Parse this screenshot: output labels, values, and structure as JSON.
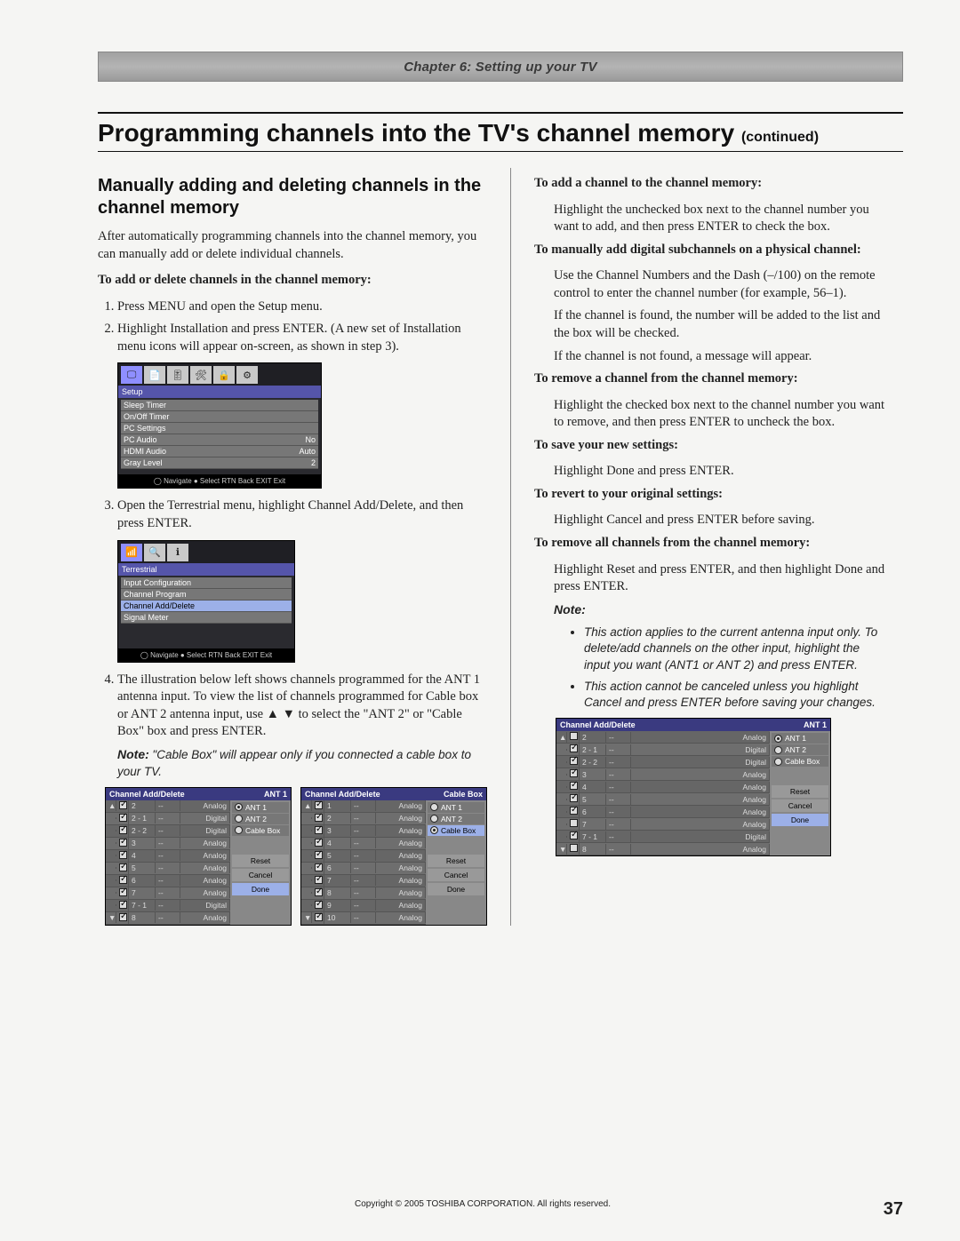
{
  "chapter_bar": "Chapter 6: Setting up your TV",
  "main_title": "Programming channels into the TV's channel memory",
  "main_title_cont": "(continued)",
  "left": {
    "sub_title": "Manually adding and deleting channels in the channel memory",
    "intro": "After automatically programming channels into the channel memory, you can manually add or delete individual channels.",
    "h_add_delete": "To add or delete channels in the channel memory:",
    "step1": "Press MENU and open the Setup menu.",
    "step2": "Highlight Installation and press ENTER. (A new set of Installation menu icons will appear on-screen, as shown in step 3).",
    "step3": "Open the Terrestrial menu, highlight Channel Add/Delete, and then press ENTER.",
    "step4": "The illustration below left shows channels programmed for the ANT 1 antenna input. To view the list of channels programmed for Cable box or ANT 2 antenna input, use ▲ ▼ to select the \"ANT 2\" or \"Cable Box\" box and press ENTER.",
    "note4_label": "Note:",
    "note4_text": "\"Cable Box\" will appear only if you connected a cable box to your TV.",
    "osd_setup": {
      "section": "Setup",
      "tabs": [
        "🖵",
        "📄",
        "🎚",
        "🛠",
        "🔒",
        "⚙"
      ],
      "rows": [
        {
          "label": "Sleep Timer",
          "value": ""
        },
        {
          "label": "On/Off Timer",
          "value": ""
        },
        {
          "label": "PC Settings",
          "value": ""
        },
        {
          "label": "PC Audio",
          "value": "No"
        },
        {
          "label": "HDMI Audio",
          "value": "Auto"
        },
        {
          "label": "Gray Level",
          "value": "2"
        }
      ],
      "nav": "◯ Navigate   ● Select   RTN Back   EXIT Exit"
    },
    "osd_terr": {
      "section": "Terrestrial",
      "tabs": [
        "📶",
        "🔍",
        "ℹ"
      ],
      "rows": [
        {
          "label": "Input Configuration",
          "value": ""
        },
        {
          "label": "Channel Program",
          "value": ""
        },
        {
          "label": "Channel Add/Delete",
          "value": "",
          "hl": true
        },
        {
          "label": "Signal Meter",
          "value": ""
        }
      ],
      "nav": "◯ Navigate   ● Select   RTN Back   EXIT Exit"
    },
    "cad_ant1": {
      "title": "Channel Add/Delete",
      "badge": "ANT 1",
      "rows": [
        {
          "arrow": "▲",
          "chk": true,
          "num": "2",
          "lbl": "--",
          "type": "Analog"
        },
        {
          "arrow": "",
          "chk": true,
          "num": "2 - 1",
          "lbl": "--",
          "type": "Digital"
        },
        {
          "arrow": "",
          "chk": true,
          "num": "2 - 2",
          "lbl": "--",
          "type": "Digital"
        },
        {
          "arrow": "",
          "chk": true,
          "num": "3",
          "lbl": "--",
          "type": "Analog"
        },
        {
          "arrow": "",
          "chk": true,
          "num": "4",
          "lbl": "--",
          "type": "Analog"
        },
        {
          "arrow": "",
          "chk": true,
          "num": "5",
          "lbl": "--",
          "type": "Analog"
        },
        {
          "arrow": "",
          "chk": true,
          "num": "6",
          "lbl": "--",
          "type": "Analog"
        },
        {
          "arrow": "",
          "chk": true,
          "num": "7",
          "lbl": "--",
          "type": "Analog"
        },
        {
          "arrow": "",
          "chk": true,
          "num": "7 - 1",
          "lbl": "--",
          "type": "Digital"
        },
        {
          "arrow": "▼",
          "chk": true,
          "num": "8",
          "lbl": "--",
          "type": "Analog"
        }
      ],
      "side": {
        "inputs": [
          {
            "label": "ANT 1",
            "on": true
          },
          {
            "label": "ANT 2",
            "on": false
          },
          {
            "label": "Cable Box",
            "on": false
          }
        ],
        "buttons": [
          "Reset",
          "Cancel",
          "Done"
        ],
        "hl_button": 2
      }
    },
    "cad_cable": {
      "title": "Channel Add/Delete",
      "badge": "Cable Box",
      "rows": [
        {
          "arrow": "▲",
          "chk": true,
          "num": "1",
          "lbl": "--",
          "type": "Analog"
        },
        {
          "arrow": "",
          "chk": true,
          "num": "2",
          "lbl": "--",
          "type": "Analog"
        },
        {
          "arrow": "",
          "chk": true,
          "num": "3",
          "lbl": "--",
          "type": "Analog"
        },
        {
          "arrow": "",
          "chk": true,
          "num": "4",
          "lbl": "--",
          "type": "Analog"
        },
        {
          "arrow": "",
          "chk": true,
          "num": "5",
          "lbl": "--",
          "type": "Analog"
        },
        {
          "arrow": "",
          "chk": true,
          "num": "6",
          "lbl": "--",
          "type": "Analog"
        },
        {
          "arrow": "",
          "chk": true,
          "num": "7",
          "lbl": "--",
          "type": "Analog"
        },
        {
          "arrow": "",
          "chk": true,
          "num": "8",
          "lbl": "--",
          "type": "Analog"
        },
        {
          "arrow": "",
          "chk": true,
          "num": "9",
          "lbl": "--",
          "type": "Analog"
        },
        {
          "arrow": "▼",
          "chk": true,
          "num": "10",
          "lbl": "--",
          "type": "Analog"
        }
      ],
      "side": {
        "inputs": [
          {
            "label": "ANT 1",
            "on": false
          },
          {
            "label": "ANT 2",
            "on": false
          },
          {
            "label": "Cable Box",
            "on": true,
            "sel": true
          }
        ],
        "buttons": [
          "Reset",
          "Cancel",
          "Done"
        ]
      }
    }
  },
  "right": {
    "h_add": "To add a channel to the channel memory:",
    "p_add": "Highlight the unchecked box next to the channel number you want to add, and then press ENTER to check the box.",
    "h_sub": "To manually add digital subchannels on a physical channel:",
    "p_sub1": "Use the Channel Numbers and the Dash (–/100) on the remote control to enter the channel number (for example, 56–1).",
    "p_sub2": "If the channel is found, the number will be added to the list and the box will be checked.",
    "p_sub3": "If the channel is not found, a message will appear.",
    "h_remove": "To remove a channel from the channel memory:",
    "p_remove": "Highlight the checked box next to the channel number you want to remove, and then press ENTER to uncheck the box.",
    "h_save": "To save your new settings:",
    "p_save": "Highlight Done and press ENTER.",
    "h_revert": "To revert to your original settings:",
    "p_revert": "Highlight Cancel and press ENTER before saving.",
    "h_remove_all": "To remove all channels from the channel memory:",
    "p_remove_all": "Highlight Reset and press ENTER, and then highlight Done and press ENTER.",
    "note_label": "Note:",
    "note_b1": "This action applies to the current antenna input only. To delete/add channels on the other input, highlight the input you want (ANT1 or ANT 2) and press ENTER.",
    "note_b2": "This action cannot be canceled unless you highlight Cancel and press ENTER before saving your changes.",
    "cad": {
      "title": "Channel Add/Delete",
      "badge": "ANT 1",
      "rows": [
        {
          "arrow": "▲",
          "chk": false,
          "num": "2",
          "lbl": "--",
          "type": "Analog"
        },
        {
          "arrow": "",
          "chk": true,
          "num": "2 - 1",
          "lbl": "--",
          "type": "Digital"
        },
        {
          "arrow": "",
          "chk": true,
          "num": "2 - 2",
          "lbl": "--",
          "type": "Digital"
        },
        {
          "arrow": "",
          "chk": true,
          "num": "3",
          "lbl": "--",
          "type": "Analog"
        },
        {
          "arrow": "",
          "chk": true,
          "num": "4",
          "lbl": "--",
          "type": "Analog"
        },
        {
          "arrow": "",
          "chk": true,
          "num": "5",
          "lbl": "--",
          "type": "Analog"
        },
        {
          "arrow": "",
          "chk": true,
          "num": "6",
          "lbl": "--",
          "type": "Analog"
        },
        {
          "arrow": "",
          "chk": false,
          "num": "7",
          "lbl": "--",
          "type": "Analog"
        },
        {
          "arrow": "",
          "chk": true,
          "num": "7 - 1",
          "lbl": "--",
          "type": "Digital"
        },
        {
          "arrow": "▼",
          "chk": false,
          "num": "8",
          "lbl": "--",
          "type": "Analog"
        }
      ],
      "side": {
        "inputs": [
          {
            "label": "ANT 1",
            "on": true
          },
          {
            "label": "ANT 2",
            "on": false
          },
          {
            "label": "Cable Box",
            "on": false
          }
        ],
        "buttons": [
          "Reset",
          "Cancel",
          "Done"
        ],
        "hl_button": 2
      }
    }
  },
  "copyright": "Copyright © 2005 TOSHIBA CORPORATION. All rights reserved.",
  "page_number": "37"
}
